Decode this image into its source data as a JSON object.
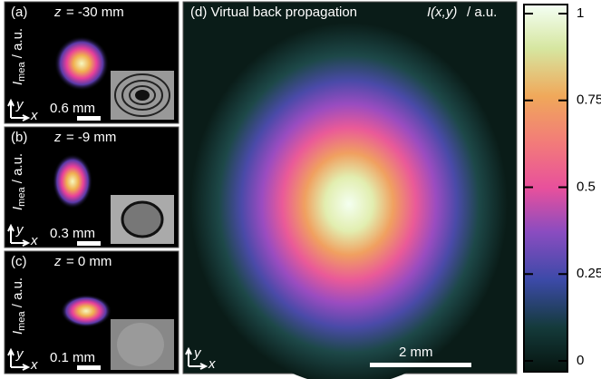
{
  "panels": [
    {
      "label": "(a)",
      "var": "z",
      "position": "= -30 mm",
      "ylabel_main": "I",
      "ylabel_sub": "mea",
      "ylabel_unit": " / a.u.",
      "axis_y": "y",
      "axis_x": "x",
      "scale_bar": "0.6 mm"
    },
    {
      "label": "(b)",
      "var": "z",
      "position": "= -9 mm",
      "ylabel_main": "I",
      "ylabel_sub": "mea",
      "ylabel_unit": " / a.u.",
      "axis_y": "y",
      "axis_x": "x",
      "scale_bar": "0.3 mm"
    },
    {
      "label": "(c)",
      "var": "z",
      "position": "= 0 mm",
      "ylabel_main": "I",
      "ylabel_sub": "mea",
      "ylabel_unit": " / a.u.",
      "axis_y": "y",
      "axis_x": "x",
      "scale_bar": "0.1 mm"
    }
  ],
  "main": {
    "label": "(d) Virtual back propagation ",
    "quantity": "I(x,y)",
    "unit": " / a.u.",
    "axis_y": "y",
    "axis_x": "x",
    "scale_bar": "2 mm"
  },
  "colorbar": {
    "lim": [
      0,
      1
    ],
    "ticks": [
      0,
      0.25,
      0.5,
      0.75,
      1
    ]
  }
}
